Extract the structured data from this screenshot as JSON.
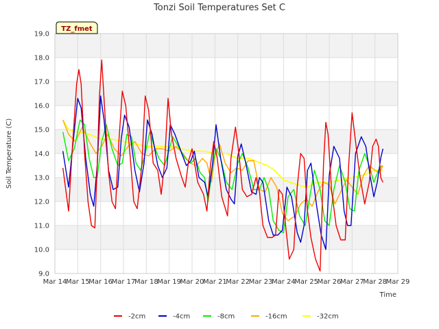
{
  "chart_data": {
    "type": "line",
    "title": "Tonzi Soil Temperatures Set C",
    "xlabel": "Time",
    "ylabel": "Soil Temperature (C)",
    "badge": "TZ_fmet",
    "ylim": [
      9.0,
      19.0
    ],
    "yticks": [
      9.0,
      10.0,
      11.0,
      12.0,
      13.0,
      14.0,
      15.0,
      16.0,
      17.0,
      18.0,
      19.0
    ],
    "ytick_labels": [
      "9.0",
      "10.0",
      "11.0",
      "12.0",
      "13.0",
      "14.0",
      "15.0",
      "16.0",
      "17.0",
      "18.0",
      "19.0"
    ],
    "xlim": [
      14,
      29
    ],
    "xticks": [
      14,
      15,
      16,
      17,
      18,
      19,
      20,
      21,
      22,
      23,
      24,
      25,
      26,
      27,
      28,
      29
    ],
    "xtick_labels": [
      "Mar 14",
      "Mar 15",
      "Mar 16",
      "Mar 17",
      "Mar 18",
      "Mar 19",
      "Mar 20",
      "Mar 21",
      "Mar 22",
      "Mar 23",
      "Mar 24",
      "Mar 25",
      "Mar 26",
      "Mar 27",
      "Mar 28",
      "Mar 29"
    ],
    "grid": true,
    "legend_position": "bottom",
    "series": [
      {
        "name": "-2cm",
        "color": "#ee0000",
        "x": [
          14.35,
          14.6,
          14.75,
          14.95,
          15.05,
          15.15,
          15.3,
          15.45,
          15.6,
          15.75,
          15.85,
          15.95,
          16.05,
          16.2,
          16.35,
          16.5,
          16.65,
          16.8,
          16.95,
          17.1,
          17.3,
          17.45,
          17.6,
          17.8,
          17.95,
          18.1,
          18.3,
          18.5,
          18.65,
          18.8,
          18.95,
          19.1,
          19.3,
          19.55,
          19.7,
          19.85,
          20.0,
          20.25,
          20.5,
          20.65,
          20.8,
          20.95,
          21.1,
          21.3,
          21.55,
          21.7,
          21.9,
          22.05,
          22.2,
          22.4,
          22.6,
          22.8,
          22.95,
          23.1,
          23.3,
          23.5,
          23.65,
          23.8,
          23.95,
          24.1,
          24.25,
          24.45,
          24.6,
          24.75,
          24.9,
          25.05,
          25.2,
          25.4,
          25.6,
          25.75,
          25.85,
          25.95,
          26.1,
          26.3,
          26.5,
          26.7,
          26.85,
          27.0,
          27.15,
          27.35,
          27.55,
          27.75,
          27.9,
          28.05,
          28.15,
          28.25,
          28.35
        ],
        "values": [
          13.4,
          11.6,
          14.0,
          16.9,
          17.5,
          16.9,
          14.0,
          12.0,
          11.0,
          10.9,
          13.5,
          16.4,
          17.9,
          15.5,
          13.2,
          12.0,
          11.7,
          14.5,
          16.6,
          16.0,
          13.8,
          12.0,
          11.7,
          13.5,
          16.4,
          15.8,
          13.6,
          13.3,
          12.3,
          13.6,
          16.3,
          14.8,
          13.8,
          13.0,
          12.6,
          13.7,
          14.2,
          12.8,
          12.3,
          11.6,
          13.5,
          14.5,
          13.8,
          12.2,
          11.4,
          13.8,
          15.1,
          14.0,
          12.5,
          12.2,
          12.3,
          13.0,
          12.4,
          11.0,
          10.5,
          10.5,
          10.6,
          12.5,
          12.3,
          10.9,
          9.6,
          10.0,
          12.6,
          14.0,
          13.8,
          11.6,
          10.5,
          9.6,
          9.1,
          13.6,
          15.3,
          14.8,
          12.5,
          11.0,
          10.4,
          10.4,
          13.5,
          15.7,
          14.5,
          13.0,
          11.9,
          12.8,
          14.3,
          14.6,
          14.3,
          13.0,
          12.8
        ]
      },
      {
        "name": "-4cm",
        "color": "#0000cc",
        "x": [
          14.35,
          14.6,
          14.8,
          15.0,
          15.15,
          15.35,
          15.55,
          15.7,
          15.85,
          16.0,
          16.15,
          16.35,
          16.55,
          16.75,
          16.9,
          17.05,
          17.25,
          17.5,
          17.7,
          17.9,
          18.05,
          18.25,
          18.5,
          18.7,
          18.9,
          19.05,
          19.25,
          19.55,
          19.75,
          19.95,
          20.1,
          20.3,
          20.55,
          20.7,
          20.9,
          21.05,
          21.25,
          21.5,
          21.7,
          21.85,
          22.0,
          22.15,
          22.35,
          22.6,
          22.8,
          22.95,
          23.1,
          23.35,
          23.55,
          23.75,
          23.95,
          24.15,
          24.35,
          24.6,
          24.75,
          24.9,
          25.05,
          25.2,
          25.45,
          25.65,
          25.85,
          26.0,
          26.2,
          26.45,
          26.65,
          26.8,
          26.95,
          27.15,
          27.4,
          27.6,
          27.8,
          27.95,
          28.1,
          28.25,
          28.35
        ],
        "values": [
          14.1,
          12.6,
          14.5,
          16.3,
          15.9,
          13.8,
          12.3,
          11.8,
          13.5,
          16.4,
          15.4,
          13.3,
          12.5,
          12.6,
          14.6,
          15.6,
          15.1,
          13.3,
          12.4,
          13.6,
          15.4,
          14.8,
          13.5,
          13.0,
          13.4,
          15.2,
          14.8,
          14.0,
          13.5,
          13.7,
          14.1,
          13.0,
          12.8,
          12.2,
          13.6,
          15.2,
          13.8,
          12.5,
          12.1,
          11.9,
          13.9,
          14.4,
          13.6,
          12.4,
          12.3,
          13.0,
          12.8,
          11.2,
          10.6,
          10.6,
          10.8,
          12.6,
          12.2,
          10.7,
          10.3,
          11.0,
          13.3,
          13.6,
          11.8,
          10.6,
          10.0,
          13.1,
          14.3,
          13.8,
          11.6,
          11.0,
          11.0,
          14.0,
          14.7,
          14.3,
          13.0,
          12.2,
          12.8,
          13.8,
          14.2
        ]
      },
      {
        "name": "-8cm",
        "color": "#00ee00",
        "x": [
          14.35,
          14.6,
          14.85,
          15.1,
          15.3,
          15.5,
          15.7,
          15.85,
          16.05,
          16.25,
          16.5,
          16.75,
          16.95,
          17.15,
          17.35,
          17.55,
          17.75,
          17.95,
          18.15,
          18.35,
          18.55,
          18.8,
          18.95,
          19.15,
          19.4,
          19.7,
          19.95,
          20.15,
          20.35,
          20.55,
          20.7,
          20.9,
          21.05,
          21.25,
          21.5,
          21.75,
          22.0,
          22.2,
          22.45,
          22.7,
          22.95,
          23.15,
          23.35,
          23.55,
          23.8,
          24.0,
          24.2,
          24.45,
          24.7,
          24.95,
          25.15,
          25.35,
          25.6,
          25.8,
          26.0,
          26.2,
          26.45,
          26.7,
          26.9,
          27.1,
          27.3,
          27.55,
          27.75,
          27.95,
          28.15,
          28.3
        ],
        "values": [
          14.9,
          13.7,
          14.2,
          15.4,
          15.2,
          13.8,
          13.0,
          13.0,
          14.5,
          15.2,
          14.2,
          13.5,
          13.6,
          14.8,
          14.7,
          13.6,
          13.3,
          14.0,
          14.9,
          14.3,
          13.8,
          13.5,
          14.0,
          14.7,
          14.3,
          13.8,
          13.6,
          13.8,
          13.2,
          13.0,
          12.0,
          13.5,
          14.2,
          13.8,
          12.8,
          12.5,
          13.6,
          14.0,
          13.4,
          12.5,
          12.5,
          13.0,
          12.5,
          11.2,
          10.8,
          10.7,
          12.2,
          12.5,
          11.4,
          11.0,
          12.2,
          13.3,
          12.5,
          11.2,
          11.0,
          12.5,
          13.5,
          12.8,
          11.7,
          11.6,
          13.3,
          14.0,
          13.5,
          12.8,
          13.3,
          13.5
        ]
      },
      {
        "name": "-16cm",
        "color": "#ffa500",
        "x": [
          14.35,
          14.6,
          14.9,
          15.2,
          15.5,
          15.8,
          16.05,
          16.3,
          16.6,
          16.9,
          17.2,
          17.5,
          17.8,
          18.1,
          18.4,
          18.7,
          19.0,
          19.3,
          19.6,
          19.9,
          20.2,
          20.45,
          20.65,
          20.85,
          21.0,
          21.2,
          21.45,
          21.7,
          21.95,
          22.2,
          22.45,
          22.7,
          22.95,
          23.2,
          23.45,
          23.7,
          23.95,
          24.2,
          24.5,
          24.75,
          25.0,
          25.25,
          25.5,
          25.75,
          26.0,
          26.25,
          26.5,
          26.75,
          27.0,
          27.25,
          27.5,
          27.75,
          28.0,
          28.2,
          28.35
        ],
        "values": [
          15.4,
          14.8,
          14.5,
          15.1,
          14.5,
          14.0,
          14.3,
          14.8,
          14.2,
          13.9,
          14.3,
          14.5,
          14.0,
          13.9,
          14.2,
          14.2,
          14.1,
          14.3,
          14.0,
          13.6,
          13.5,
          13.8,
          13.6,
          12.8,
          13.9,
          14.4,
          13.6,
          13.2,
          13.4,
          13.3,
          13.7,
          13.7,
          12.5,
          12.4,
          13.0,
          12.6,
          11.5,
          11.2,
          11.4,
          11.9,
          12.1,
          11.8,
          12.4,
          12.8,
          12.7,
          11.9,
          12.4,
          12.9,
          12.6,
          12.3,
          13.1,
          13.5,
          13.3,
          13.2,
          13.5
        ]
      },
      {
        "name": "-32cm",
        "color": "#ffff00",
        "x": [
          14.35,
          14.6,
          15.0,
          15.5,
          16.0,
          16.5,
          17.0,
          17.5,
          18.0,
          18.5,
          19.0,
          19.5,
          20.0,
          20.5,
          21.0,
          21.5,
          22.0,
          22.5,
          23.0,
          23.3,
          23.6,
          24.0,
          24.3,
          24.6,
          25.0,
          25.5,
          26.0,
          26.5,
          27.0,
          27.5,
          28.0,
          28.35
        ],
        "values": [
          15.4,
          15.0,
          14.9,
          14.8,
          14.6,
          14.6,
          14.5,
          14.4,
          14.3,
          14.3,
          14.3,
          14.2,
          14.1,
          14.1,
          14.0,
          14.0,
          13.8,
          13.8,
          13.6,
          13.5,
          13.3,
          12.9,
          12.8,
          12.7,
          12.6,
          12.8,
          12.8,
          12.9,
          13.0,
          13.1,
          13.3,
          13.3
        ]
      }
    ]
  }
}
